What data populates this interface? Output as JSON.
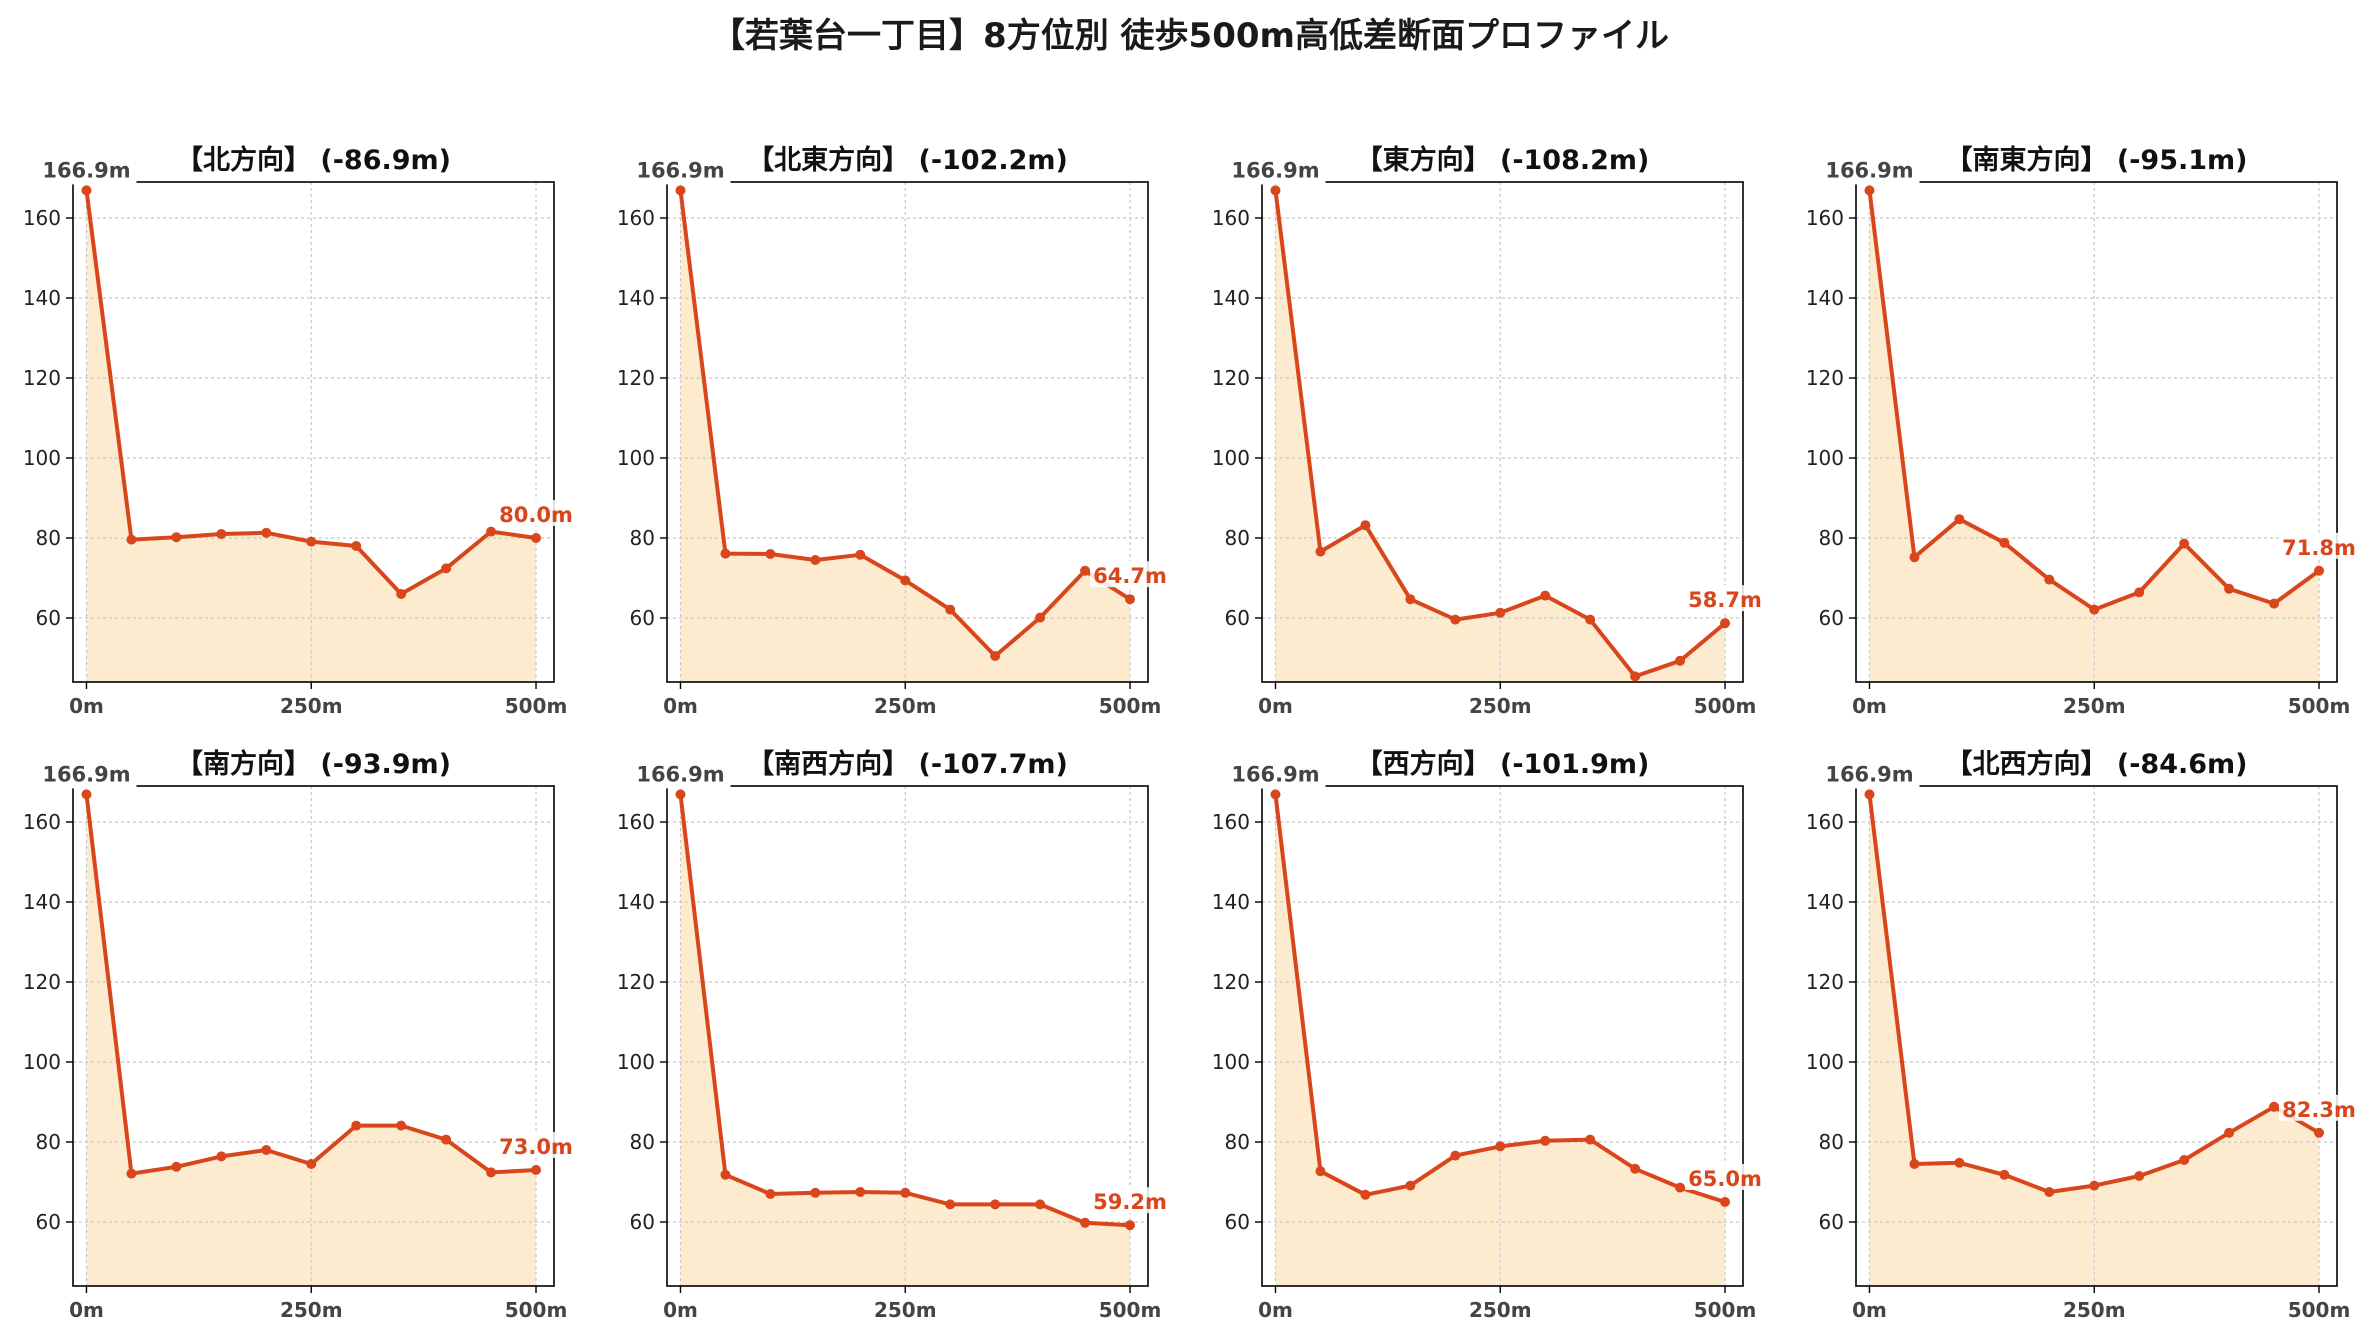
{
  "title": "【若葉台一丁目】8方位別 徒歩500m高低差断面プロファイル",
  "colors": {
    "line": "#d9461b",
    "fill": "#fdebd0",
    "grid": "#c8c8c8",
    "start_label": "#444444",
    "end_label": "#d9461b"
  },
  "chart_data": [
    {
      "type": "area",
      "title": "【北方向】 (-86.9m)",
      "x": [
        0,
        50,
        100,
        150,
        200,
        250,
        300,
        350,
        400,
        450,
        500
      ],
      "y": [
        166.9,
        79.6,
        80.2,
        81.0,
        81.3,
        79.1,
        78.0,
        66.0,
        72.4,
        81.6,
        80.0
      ],
      "xticks": [
        "0m",
        "250m",
        "500m"
      ],
      "yticks": [
        60,
        80,
        100,
        120,
        140,
        160
      ],
      "xlim": [
        -15,
        520
      ],
      "ylim": [
        44,
        169
      ],
      "start_label": "166.9m",
      "end_label": "80.0m",
      "grid": true
    },
    {
      "type": "area",
      "title": "【北東方向】 (-102.2m)",
      "x": [
        0,
        50,
        100,
        150,
        200,
        250,
        300,
        350,
        400,
        450,
        500
      ],
      "y": [
        166.9,
        76.1,
        76.0,
        74.5,
        75.8,
        69.4,
        62.1,
        50.5,
        60.1,
        71.8,
        64.7
      ],
      "xticks": [
        "0m",
        "250m",
        "500m"
      ],
      "yticks": [
        60,
        80,
        100,
        120,
        140,
        160
      ],
      "xlim": [
        -15,
        520
      ],
      "ylim": [
        44,
        169
      ],
      "start_label": "166.9m",
      "end_label": "64.7m",
      "grid": true
    },
    {
      "type": "area",
      "title": "【東方向】 (-108.2m)",
      "x": [
        0,
        50,
        100,
        150,
        200,
        250,
        300,
        350,
        400,
        450,
        500
      ],
      "y": [
        166.9,
        76.6,
        83.2,
        64.7,
        59.6,
        61.3,
        65.6,
        59.6,
        45.4,
        49.3,
        58.7
      ],
      "xticks": [
        "0m",
        "250m",
        "500m"
      ],
      "yticks": [
        60,
        80,
        100,
        120,
        140,
        160
      ],
      "xlim": [
        -15,
        520
      ],
      "ylim": [
        44,
        169
      ],
      "start_label": "166.9m",
      "end_label": "58.7m",
      "grid": true
    },
    {
      "type": "area",
      "title": "【南東方向】 (-95.1m)",
      "x": [
        0,
        50,
        100,
        150,
        200,
        250,
        300,
        350,
        400,
        450,
        500
      ],
      "y": [
        166.9,
        75.2,
        84.7,
        78.8,
        69.6,
        62.1,
        66.4,
        78.6,
        67.3,
        63.6,
        71.8
      ],
      "xticks": [
        "0m",
        "250m",
        "500m"
      ],
      "yticks": [
        60,
        80,
        100,
        120,
        140,
        160
      ],
      "xlim": [
        -15,
        520
      ],
      "ylim": [
        44,
        169
      ],
      "start_label": "166.9m",
      "end_label": "71.8m",
      "grid": true
    },
    {
      "type": "area",
      "title": "【南方向】 (-93.9m)",
      "x": [
        0,
        50,
        100,
        150,
        200,
        250,
        300,
        350,
        400,
        450,
        500
      ],
      "y": [
        166.9,
        72.1,
        73.8,
        76.4,
        78.0,
        74.5,
        84.1,
        84.1,
        80.6,
        72.4,
        73.0
      ],
      "xticks": [
        "0m",
        "250m",
        "500m"
      ],
      "yticks": [
        60,
        80,
        100,
        120,
        140,
        160
      ],
      "xlim": [
        -15,
        520
      ],
      "ylim": [
        44,
        169
      ],
      "start_label": "166.9m",
      "end_label": "73.0m",
      "grid": true
    },
    {
      "type": "area",
      "title": "【南西方向】 (-107.7m)",
      "x": [
        0,
        50,
        100,
        150,
        200,
        250,
        300,
        350,
        400,
        450,
        500
      ],
      "y": [
        166.9,
        71.8,
        67.0,
        67.3,
        67.5,
        67.3,
        64.4,
        64.4,
        64.4,
        59.8,
        59.2
      ],
      "xticks": [
        "0m",
        "250m",
        "500m"
      ],
      "yticks": [
        60,
        80,
        100,
        120,
        140,
        160
      ],
      "xlim": [
        -15,
        520
      ],
      "ylim": [
        44,
        169
      ],
      "start_label": "166.9m",
      "end_label": "59.2m",
      "grid": true
    },
    {
      "type": "area",
      "title": "【西方向】 (-101.9m)",
      "x": [
        0,
        50,
        100,
        150,
        200,
        250,
        300,
        350,
        400,
        450,
        500
      ],
      "y": [
        166.9,
        72.7,
        66.8,
        69.1,
        76.6,
        78.9,
        80.3,
        80.6,
        73.3,
        68.6,
        65.0
      ],
      "xticks": [
        "0m",
        "250m",
        "500m"
      ],
      "yticks": [
        60,
        80,
        100,
        120,
        140,
        160
      ],
      "xlim": [
        -15,
        520
      ],
      "ylim": [
        44,
        169
      ],
      "start_label": "166.9m",
      "end_label": "65.0m",
      "grid": true
    },
    {
      "type": "area",
      "title": "【北西方向】 (-84.6m)",
      "x": [
        0,
        50,
        100,
        150,
        200,
        250,
        300,
        350,
        400,
        450,
        500
      ],
      "y": [
        166.9,
        74.5,
        74.8,
        71.8,
        67.5,
        69.1,
        71.5,
        75.5,
        82.3,
        88.8,
        82.3
      ],
      "xticks": [
        "0m",
        "250m",
        "500m"
      ],
      "yticks": [
        60,
        80,
        100,
        120,
        140,
        160
      ],
      "xlim": [
        -15,
        520
      ],
      "ylim": [
        44,
        169
      ],
      "start_label": "166.9m",
      "end_label": "82.3m",
      "grid": true
    }
  ]
}
